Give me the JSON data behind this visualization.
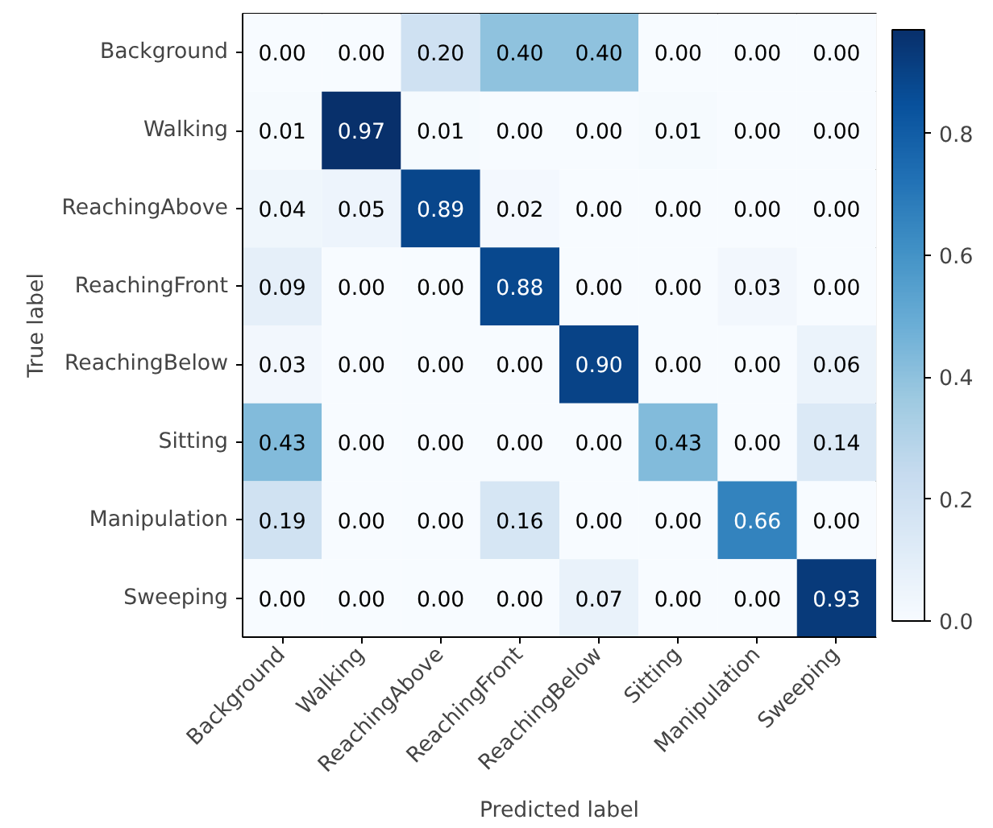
{
  "chart_data": {
    "type": "heatmap",
    "xlabel": "Predicted label",
    "ylabel": "True label",
    "categories": [
      "Background",
      "Walking",
      "ReachingAbove",
      "ReachingFront",
      "ReachingBelow",
      "Sitting",
      "Manipulation",
      "Sweeping"
    ],
    "y_categories": [
      "Background",
      "Walking",
      "ReachingAbove",
      "ReachingFront",
      "ReachingBelow",
      "Sitting",
      "Manipulation",
      "Sweeping"
    ],
    "cells": [
      [
        0.0,
        0.0,
        0.2,
        0.4,
        0.4,
        0.0,
        0.0,
        0.0
      ],
      [
        0.01,
        0.97,
        0.01,
        0.0,
        0.0,
        0.01,
        0.0,
        0.0
      ],
      [
        0.04,
        0.05,
        0.89,
        0.02,
        0.0,
        0.0,
        0.0,
        0.0
      ],
      [
        0.09,
        0.0,
        0.0,
        0.88,
        0.0,
        0.0,
        0.03,
        0.0
      ],
      [
        0.03,
        0.0,
        0.0,
        0.0,
        0.9,
        0.0,
        0.0,
        0.06
      ],
      [
        0.43,
        0.0,
        0.0,
        0.0,
        0.0,
        0.43,
        0.0,
        0.14
      ],
      [
        0.19,
        0.0,
        0.0,
        0.16,
        0.0,
        0.0,
        0.66,
        0.0
      ],
      [
        0.0,
        0.0,
        0.0,
        0.0,
        0.07,
        0.0,
        0.0,
        0.93
      ]
    ],
    "cell_labels": [
      [
        "0.00",
        "0.00",
        "0.20",
        "0.40",
        "0.40",
        "0.00",
        "0.00",
        "0.00"
      ],
      [
        "0.01",
        "0.97",
        "0.01",
        "0.00",
        "0.00",
        "0.01",
        "0.00",
        "0.00"
      ],
      [
        "0.04",
        "0.05",
        "0.89",
        "0.02",
        "0.00",
        "0.00",
        "0.00",
        "0.00"
      ],
      [
        "0.09",
        "0.00",
        "0.00",
        "0.88",
        "0.00",
        "0.00",
        "0.03",
        "0.00"
      ],
      [
        "0.03",
        "0.00",
        "0.00",
        "0.00",
        "0.90",
        "0.00",
        "0.00",
        "0.06"
      ],
      [
        "0.43",
        "0.00",
        "0.00",
        "0.00",
        "0.00",
        "0.43",
        "0.00",
        "0.14"
      ],
      [
        "0.19",
        "0.00",
        "0.00",
        "0.16",
        "0.00",
        "0.00",
        "0.66",
        "0.00"
      ],
      [
        "0.00",
        "0.00",
        "0.00",
        "0.00",
        "0.07",
        "0.00",
        "0.00",
        "0.93"
      ]
    ],
    "clim": [
      0,
      0.97
    ],
    "cticks": [
      {
        "value": 0,
        "label": "0.0"
      },
      {
        "value": 0.2,
        "label": "0.2"
      },
      {
        "value": 0.4,
        "label": "0.4"
      },
      {
        "value": 0.6,
        "label": "0.6"
      },
      {
        "value": 0.8,
        "label": "0.8"
      }
    ],
    "grid": false
  }
}
